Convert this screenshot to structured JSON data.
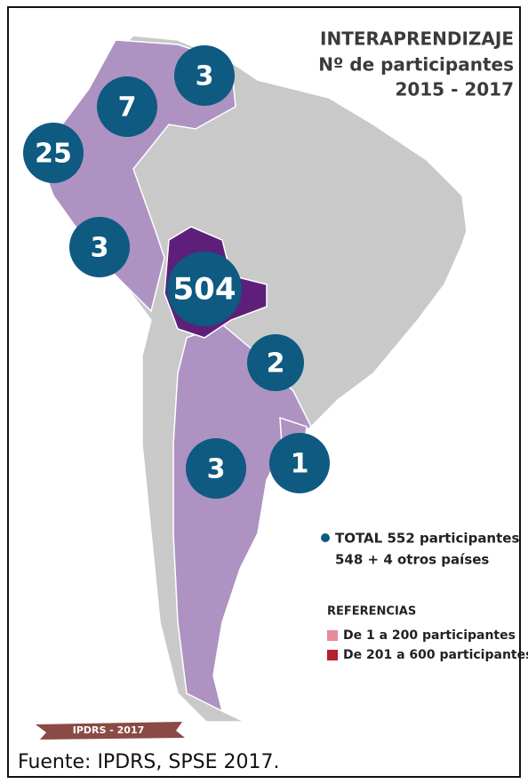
{
  "title": [
    "INTERAPRENDIZAJE",
    "Nº de participantes",
    "2015 - 2017"
  ],
  "bubbles": [
    3,
    7,
    25,
    3,
    504,
    2,
    3,
    1
  ],
  "bubble_color": "#0e5a80",
  "total": [
    "TOTAL 552 participantes",
    "548 + 4 otros países"
  ],
  "legend": {
    "title": "REFERENCIAS",
    "items": [
      {
        "label": "De 1 a 200 participantes",
        "color": "#e88a9b"
      },
      {
        "label": "De 201 a 600 participantes",
        "color": "#b5202e"
      }
    ]
  },
  "badge": "IPDRS - 2017",
  "source": "Fuente: IPDRS, SPSE 2017."
}
